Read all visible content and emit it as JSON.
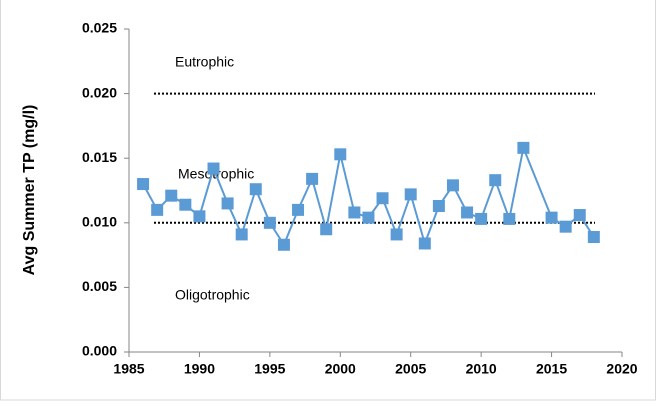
{
  "chart_data": {
    "type": "line",
    "y_label": "Avg Summer TP (mg/l)",
    "x": [
      1986,
      1987,
      1988,
      1989,
      1990,
      1991,
      1992,
      1993,
      1994,
      1995,
      1996,
      1997,
      1998,
      1999,
      2000,
      2001,
      2002,
      2003,
      2004,
      2005,
      2006,
      2007,
      2008,
      2009,
      2010,
      2011,
      2012,
      2013,
      2015,
      2016,
      2017,
      2018
    ],
    "series": [
      {
        "color": "#5b9bd5",
        "marker": "square",
        "values": [
          0.013,
          0.011,
          0.0121,
          0.0114,
          0.0105,
          0.0142,
          0.0115,
          0.0091,
          0.0126,
          0.01,
          0.0083,
          0.011,
          0.0134,
          0.0095,
          0.0153,
          0.0108,
          0.0104,
          0.0119,
          0.0091,
          0.0122,
          0.0084,
          0.0113,
          0.0129,
          0.0108,
          0.0103,
          0.0133,
          0.0103,
          0.0158,
          0.0104,
          0.0097,
          0.0106,
          0.0089
        ]
      }
    ],
    "xlim": [
      1985,
      2020
    ],
    "xticks": [
      1985,
      1990,
      1995,
      2000,
      2005,
      2010,
      2015,
      2020
    ],
    "ylim": [
      0,
      0.025
    ],
    "yticks": [
      {
        "value": 0,
        "label": "0.000"
      },
      0.005,
      {
        "value": 0.01,
        "label": "0.010"
      },
      0.015,
      {
        "value": 0.02,
        "label": "0.020"
      },
      0.025
    ],
    "reference_lines": [
      0.02,
      0.01
    ],
    "annotations": [
      "Eutrophic",
      "Mesotrophic",
      "Oligotrophic"
    ]
  }
}
